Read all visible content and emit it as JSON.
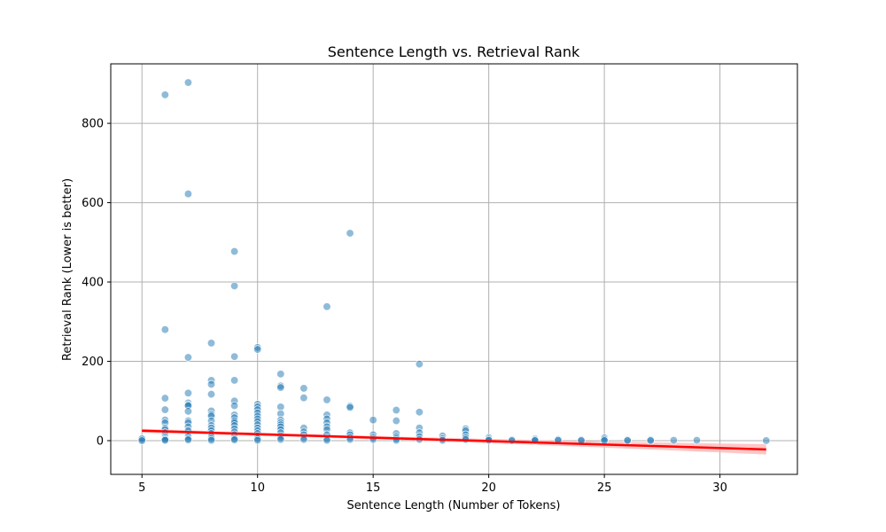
{
  "chart_data": {
    "type": "scatter",
    "title": "Sentence Length vs. Retrieval Rank",
    "xlabel": "Sentence Length (Number of Tokens)",
    "ylabel": "Retrieval Rank (Lower is better)",
    "xlim": [
      3.65,
      33.35
    ],
    "ylim": [
      -85,
      950
    ],
    "x_ticks": [
      5,
      10,
      15,
      20,
      25,
      30
    ],
    "y_ticks": [
      0,
      200,
      400,
      600,
      800
    ],
    "grid": true,
    "colors": {
      "points": "#1f77b4",
      "regression": "#ff0000",
      "band": "#ffb3b3"
    },
    "regression": {
      "x_start": 5,
      "y_start": 25,
      "x_end": 32,
      "y_end": -22
    },
    "points": [
      [
        5,
        2
      ],
      [
        5,
        5
      ],
      [
        5,
        0
      ],
      [
        6,
        872
      ],
      [
        6,
        280
      ],
      [
        6,
        107
      ],
      [
        6,
        78
      ],
      [
        6,
        52
      ],
      [
        6,
        45
      ],
      [
        6,
        32
      ],
      [
        6,
        28
      ],
      [
        6,
        20
      ],
      [
        6,
        15
      ],
      [
        6,
        10
      ],
      [
        6,
        6
      ],
      [
        6,
        3
      ],
      [
        6,
        1
      ],
      [
        7,
        903
      ],
      [
        7,
        622
      ],
      [
        7,
        210
      ],
      [
        7,
        120
      ],
      [
        7,
        95
      ],
      [
        7,
        90
      ],
      [
        7,
        88
      ],
      [
        7,
        74
      ],
      [
        7,
        50
      ],
      [
        7,
        45
      ],
      [
        7,
        35
      ],
      [
        7,
        25
      ],
      [
        7,
        15
      ],
      [
        7,
        10
      ],
      [
        7,
        5
      ],
      [
        7,
        2
      ],
      [
        8,
        246
      ],
      [
        8,
        152
      ],
      [
        8,
        142
      ],
      [
        8,
        117
      ],
      [
        8,
        75
      ],
      [
        8,
        66
      ],
      [
        8,
        62
      ],
      [
        8,
        50
      ],
      [
        8,
        38
      ],
      [
        8,
        32
      ],
      [
        8,
        25
      ],
      [
        8,
        18
      ],
      [
        8,
        10
      ],
      [
        8,
        5
      ],
      [
        8,
        1
      ],
      [
        9,
        477
      ],
      [
        9,
        390
      ],
      [
        9,
        212
      ],
      [
        9,
        152
      ],
      [
        9,
        100
      ],
      [
        9,
        88
      ],
      [
        9,
        65
      ],
      [
        9,
        58
      ],
      [
        9,
        50
      ],
      [
        9,
        45
      ],
      [
        9,
        38
      ],
      [
        9,
        30
      ],
      [
        9,
        22
      ],
      [
        9,
        15
      ],
      [
        9,
        10
      ],
      [
        9,
        5
      ],
      [
        9,
        2
      ],
      [
        10,
        235
      ],
      [
        10,
        230
      ],
      [
        10,
        92
      ],
      [
        10,
        85
      ],
      [
        10,
        78
      ],
      [
        10,
        70
      ],
      [
        10,
        62
      ],
      [
        10,
        55
      ],
      [
        10,
        48
      ],
      [
        10,
        40
      ],
      [
        10,
        32
      ],
      [
        10,
        25
      ],
      [
        10,
        18
      ],
      [
        10,
        12
      ],
      [
        10,
        5
      ],
      [
        10,
        1
      ],
      [
        11,
        168
      ],
      [
        11,
        138
      ],
      [
        11,
        134
      ],
      [
        11,
        85
      ],
      [
        11,
        68
      ],
      [
        11,
        52
      ],
      [
        11,
        45
      ],
      [
        11,
        40
      ],
      [
        11,
        35
      ],
      [
        11,
        28
      ],
      [
        11,
        20
      ],
      [
        11,
        12
      ],
      [
        11,
        8
      ],
      [
        11,
        3
      ],
      [
        12,
        132
      ],
      [
        12,
        108
      ],
      [
        12,
        32
      ],
      [
        12,
        22
      ],
      [
        12,
        15
      ],
      [
        12,
        8
      ],
      [
        12,
        3
      ],
      [
        13,
        338
      ],
      [
        13,
        103
      ],
      [
        13,
        65
      ],
      [
        13,
        55
      ],
      [
        13,
        45
      ],
      [
        13,
        35
      ],
      [
        13,
        28
      ],
      [
        13,
        15
      ],
      [
        13,
        5
      ],
      [
        13,
        1
      ],
      [
        14,
        523
      ],
      [
        14,
        87
      ],
      [
        14,
        84
      ],
      [
        14,
        20
      ],
      [
        14,
        15
      ],
      [
        14,
        8
      ],
      [
        14,
        3
      ],
      [
        15,
        52
      ],
      [
        15,
        15
      ],
      [
        15,
        8
      ],
      [
        15,
        3
      ],
      [
        16,
        77
      ],
      [
        16,
        50
      ],
      [
        16,
        18
      ],
      [
        16,
        10
      ],
      [
        16,
        5
      ],
      [
        16,
        1
      ],
      [
        17,
        193
      ],
      [
        17,
        72
      ],
      [
        17,
        32
      ],
      [
        17,
        20
      ],
      [
        17,
        10
      ],
      [
        17,
        3
      ],
      [
        18,
        12
      ],
      [
        18,
        5
      ],
      [
        18,
        1
      ],
      [
        19,
        30
      ],
      [
        19,
        25
      ],
      [
        19,
        15
      ],
      [
        19,
        8
      ],
      [
        19,
        3
      ],
      [
        20,
        8
      ],
      [
        20,
        4
      ],
      [
        20,
        1
      ],
      [
        21,
        2
      ],
      [
        21,
        0
      ],
      [
        22,
        5
      ],
      [
        22,
        2
      ],
      [
        22,
        0
      ],
      [
        23,
        3
      ],
      [
        23,
        1
      ],
      [
        24,
        2
      ],
      [
        24,
        0
      ],
      [
        25,
        7
      ],
      [
        25,
        3
      ],
      [
        25,
        0
      ],
      [
        26,
        2
      ],
      [
        26,
        0
      ],
      [
        27,
        2
      ],
      [
        27,
        0
      ],
      [
        28,
        1
      ],
      [
        29,
        1
      ],
      [
        32,
        0
      ]
    ]
  }
}
